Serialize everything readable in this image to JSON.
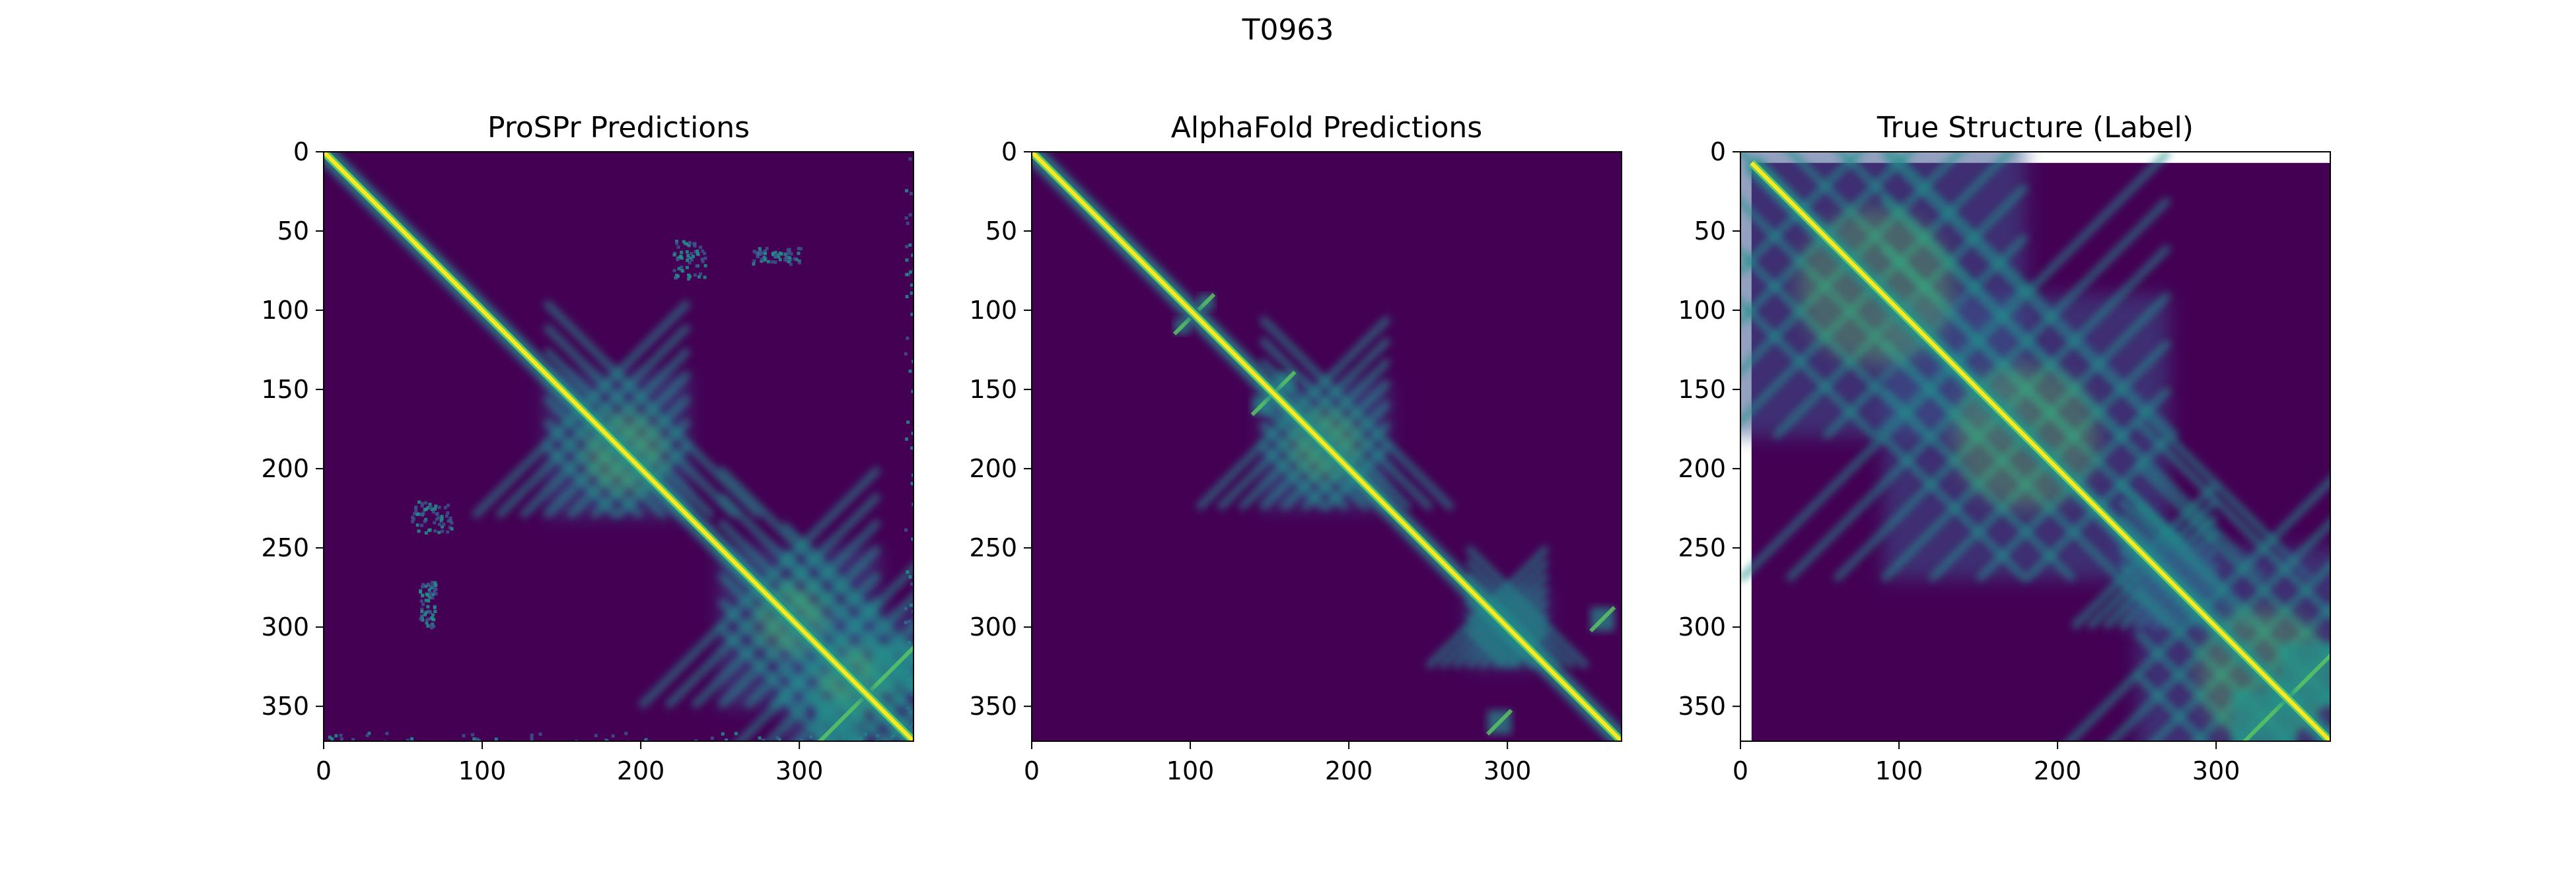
{
  "figure": {
    "suptitle": "T0963"
  },
  "colors": {
    "background": "#440154",
    "diagonal": "#fde725",
    "halo": "#5ec962",
    "teal": "#21918c",
    "blue": "#3b528b",
    "frame": "#000000"
  },
  "chart_data": [
    {
      "type": "heatmap",
      "title": "ProSPr Predictions",
      "xlim": [
        0,
        372
      ],
      "ylim": [
        372,
        0
      ],
      "xticks": [
        0,
        100,
        200,
        300
      ],
      "yticks": [
        0,
        50,
        100,
        150,
        200,
        250,
        300,
        350
      ],
      "colormap": "viridis",
      "data_extent": [
        0,
        372
      ],
      "diagonal": {
        "from": 0,
        "to": 372
      },
      "domains": [
        {
          "center": 185,
          "size": 45
        },
        {
          "center": 300,
          "size": 50
        },
        {
          "center": 345,
          "size": 55
        }
      ],
      "hotspots": [
        {
          "x": 190,
          "y": 190,
          "size": 35
        },
        {
          "x": 295,
          "y": 295,
          "size": 30
        },
        {
          "x": 335,
          "y": 335,
          "size": 30
        }
      ],
      "off_diagonal_contacts": [
        {
          "x": 325,
          "y": 360,
          "size": 30
        },
        {
          "x": 360,
          "y": 325,
          "size": 30
        }
      ],
      "noise_regions": [
        {
          "x": [
            220,
            240
          ],
          "y": [
            55,
            80
          ]
        },
        {
          "x": [
            55,
            80
          ],
          "y": [
            220,
            240
          ]
        },
        {
          "x": [
            270,
            300
          ],
          "y": [
            60,
            70
          ]
        },
        {
          "x": [
            60,
            70
          ],
          "y": [
            270,
            300
          ]
        },
        {
          "x": [
            0,
            372
          ],
          "y": [
            366,
            372
          ]
        },
        {
          "x": [
            366,
            372
          ],
          "y": [
            0,
            372
          ]
        }
      ]
    },
    {
      "type": "heatmap",
      "title": "AlphaFold Predictions",
      "xlim": [
        0,
        372
      ],
      "ylim": [
        372,
        0
      ],
      "xticks": [
        0,
        100,
        200,
        300
      ],
      "yticks": [
        0,
        50,
        100,
        150,
        200,
        250,
        300,
        350
      ],
      "colormap": "viridis",
      "data_extent": [
        0,
        372
      ],
      "diagonal": {
        "from": 0,
        "to": 372
      },
      "domains": [
        {
          "center": 185,
          "size": 40
        },
        {
          "center": 300,
          "size": 25
        }
      ],
      "hotspots": [
        {
          "x": 185,
          "y": 185,
          "size": 30
        }
      ],
      "off_diagonal_contacts": [
        {
          "x": 160,
          "y": 145,
          "size": 12
        },
        {
          "x": 145,
          "y": 160,
          "size": 12
        },
        {
          "x": 295,
          "y": 360,
          "size": 15
        },
        {
          "x": 360,
          "y": 295,
          "size": 15
        },
        {
          "x": 110,
          "y": 95,
          "size": 10
        },
        {
          "x": 95,
          "y": 110,
          "size": 10
        }
      ],
      "noise_regions": []
    },
    {
      "type": "heatmap",
      "title": "True Structure (Label)",
      "xlim": [
        0,
        372
      ],
      "ylim": [
        372,
        0
      ],
      "xticks": [
        0,
        100,
        200,
        300
      ],
      "yticks": [
        0,
        50,
        100,
        150,
        200,
        250,
        300,
        350
      ],
      "colormap": "viridis",
      "data_extent": [
        7,
        372
      ],
      "diagonal": {
        "from": 7,
        "to": 372
      },
      "domains": [
        {
          "center": 85,
          "size": 95
        },
        {
          "center": 180,
          "size": 90
        },
        {
          "center": 270,
          "size": 30
        },
        {
          "center": 330,
          "size": 80
        }
      ],
      "hotspots": [
        {
          "x": 85,
          "y": 85,
          "size": 70
        },
        {
          "x": 180,
          "y": 180,
          "size": 65
        },
        {
          "x": 330,
          "y": 330,
          "size": 60
        }
      ],
      "off_diagonal_contacts": [
        {
          "x": 330,
          "y": 360,
          "size": 40
        },
        {
          "x": 360,
          "y": 330,
          "size": 40
        }
      ],
      "noise_regions": []
    }
  ]
}
